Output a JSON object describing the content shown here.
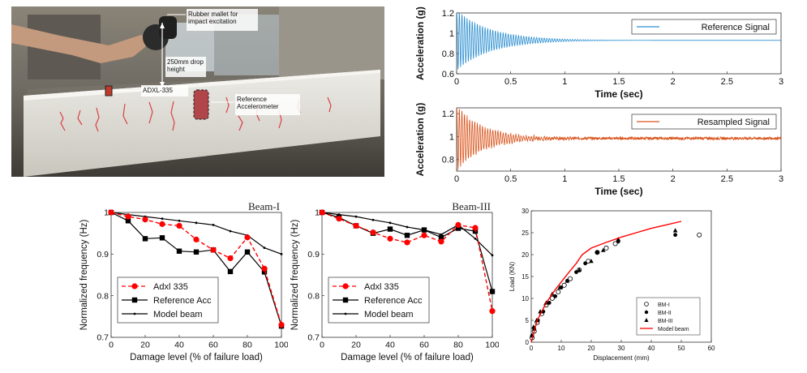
{
  "photo": {
    "annotations": [
      {
        "text": "Rubber mallet for impact excitation"
      },
      {
        "text": "250mm drop height"
      },
      {
        "text": "ADXL-335"
      },
      {
        "text": "Reference Accelerometer"
      }
    ]
  },
  "chart_data": [
    {
      "id": "reference-signal",
      "type": "line",
      "legend": [
        "Reference Signal"
      ],
      "legend_position": "top-right",
      "xlabel": "Time (sec)",
      "ylabel": "Acceleration (g)",
      "xlim": [
        0,
        3
      ],
      "ylim": [
        0.6,
        1.2
      ],
      "xticks": [
        0,
        0.5,
        1,
        1.5,
        2,
        2.5,
        3
      ],
      "yticks": [
        0.6,
        0.8,
        1,
        1.2
      ],
      "color": "#2c8fd0",
      "signal": {
        "baseline": 0.93,
        "amplitude": 0.3,
        "decay": 3.2,
        "frequency_hz": 42,
        "noise": 0.0,
        "duration": 3
      }
    },
    {
      "id": "resampled-signal",
      "type": "line",
      "legend": [
        "Resampled Signal"
      ],
      "legend_position": "top-right",
      "xlabel": "Time (sec)",
      "ylabel": "Acceleration (g)",
      "xlim": [
        0,
        3
      ],
      "ylim": [
        0.7,
        1.25
      ],
      "xticks": [
        0,
        0.5,
        1,
        1.5,
        2,
        2.5,
        3
      ],
      "yticks": [
        0.8,
        1,
        1.2
      ],
      "color": "#d9531a",
      "signal": {
        "baseline": 0.985,
        "amplitude": 0.28,
        "decay": 4.0,
        "frequency_hz": 42,
        "noise": 0.012,
        "duration": 3
      }
    },
    {
      "id": "beam-1",
      "type": "line",
      "title": "Beam-I",
      "xlabel": "Damage level (% of failure load)",
      "ylabel": "Normalized frequency (Hz)",
      "xlim": [
        0,
        100
      ],
      "ylim": [
        0.7,
        1
      ],
      "xticks": [
        0,
        20,
        40,
        60,
        80,
        100
      ],
      "yticks": [
        0.7,
        0.8,
        0.9,
        1
      ],
      "legend_position": "bottom-left",
      "series": [
        {
          "name": "Adxl 335",
          "color": "#ff0000",
          "marker": "circle",
          "dash": true,
          "x": [
            0,
            10,
            20,
            30,
            40,
            50,
            60,
            70,
            80,
            90,
            100
          ],
          "y": [
            1.0,
            0.99,
            0.983,
            0.972,
            0.968,
            0.935,
            0.91,
            0.89,
            0.94,
            0.865,
            0.73
          ]
        },
        {
          "name": "Reference Acc",
          "color": "#000000",
          "marker": "square",
          "dash": false,
          "x": [
            0,
            10,
            20,
            30,
            40,
            50,
            60,
            70,
            80,
            90,
            100
          ],
          "y": [
            1.0,
            0.98,
            0.937,
            0.939,
            0.907,
            0.905,
            0.91,
            0.858,
            0.905,
            0.857,
            0.727
          ]
        },
        {
          "name": "Model beam",
          "color": "#000000",
          "marker": "dot",
          "dash": false,
          "x": [
            0,
            10,
            20,
            30,
            40,
            50,
            60,
            70,
            80,
            90,
            100
          ],
          "y": [
            1.0,
            0.995,
            0.99,
            0.985,
            0.98,
            0.975,
            0.97,
            0.955,
            0.945,
            0.915,
            0.9
          ]
        }
      ]
    },
    {
      "id": "beam-3",
      "type": "line",
      "title": "Beam-III",
      "xlabel": "Damage level (% of failure load)",
      "ylabel": "Normalized frequency (Hz)",
      "xlim": [
        0,
        100
      ],
      "ylim": [
        0.7,
        1
      ],
      "xticks": [
        0,
        20,
        40,
        60,
        80,
        100
      ],
      "yticks": [
        0.7,
        0.8,
        0.9,
        1
      ],
      "legend_position": "bottom-left",
      "series": [
        {
          "name": "Adxl 335",
          "color": "#ff0000",
          "marker": "circle",
          "dash": true,
          "x": [
            0,
            10,
            20,
            30,
            40,
            50,
            60,
            70,
            80,
            90,
            100
          ],
          "y": [
            1.0,
            0.985,
            0.968,
            0.952,
            0.937,
            0.928,
            0.945,
            0.93,
            0.97,
            0.963,
            0.763
          ]
        },
        {
          "name": "Reference Acc",
          "color": "#000000",
          "marker": "square",
          "dash": false,
          "x": [
            0,
            10,
            20,
            30,
            40,
            50,
            60,
            70,
            80,
            90,
            100
          ],
          "y": [
            1.0,
            0.988,
            0.968,
            0.95,
            0.96,
            0.945,
            0.958,
            0.94,
            0.962,
            0.955,
            0.81
          ]
        },
        {
          "name": "Model beam",
          "color": "#000000",
          "marker": "dot",
          "dash": false,
          "x": [
            0,
            10,
            20,
            30,
            40,
            50,
            60,
            70,
            80,
            90,
            100
          ],
          "y": [
            1.0,
            0.995,
            0.99,
            0.982,
            0.975,
            0.965,
            0.958,
            0.947,
            0.97,
            0.937,
            0.897
          ]
        }
      ]
    },
    {
      "id": "load-displacement",
      "type": "scatter",
      "xlabel": "Displacement (mm)",
      "ylabel": "Load (KN)",
      "xlim": [
        0,
        60
      ],
      "ylim": [
        0,
        30
      ],
      "xticks": [
        0,
        10,
        20,
        30,
        40,
        50,
        60
      ],
      "yticks": [
        0,
        5,
        10,
        15,
        20,
        25,
        30
      ],
      "legend_position": "bottom-right",
      "series": [
        {
          "name": "BM-I",
          "marker": "open-circle",
          "color": "#000000",
          "x": [
            0.3,
            1,
            2,
            3.5,
            5,
            7,
            9,
            11,
            13,
            16,
            19,
            22,
            25,
            28,
            56
          ],
          "y": [
            1,
            2.5,
            4.5,
            6.5,
            8.5,
            10,
            11.5,
            13,
            14.5,
            16.5,
            18.5,
            20.5,
            21.5,
            22.5,
            24.5
          ]
        },
        {
          "name": "BM-II",
          "marker": "filled-circle",
          "color": "#000000",
          "x": [
            0.3,
            1,
            2.2,
            4,
            6,
            8,
            10,
            12,
            15,
            18,
            22,
            29,
            48
          ],
          "y": [
            1.5,
            3,
            5,
            7,
            9,
            10.5,
            12.5,
            14,
            16,
            18,
            20.5,
            23,
            24.5
          ]
        },
        {
          "name": "BM-III",
          "marker": "filled-triangle",
          "color": "#000000",
          "x": [
            0.2,
            0.8,
            1.8,
            3,
            5,
            7,
            9.5,
            12,
            16,
            20,
            24,
            29,
            48
          ],
          "y": [
            1.5,
            3.5,
            5,
            7,
            9,
            11,
            12.5,
            14,
            16.5,
            18.5,
            21,
            23.5,
            25.5
          ]
        },
        {
          "name": "Model beam",
          "marker": "line",
          "color": "#ff0000",
          "x": [
            0,
            2,
            5,
            8,
            12,
            15,
            17,
            20,
            25,
            30,
            35,
            40,
            45,
            50
          ],
          "y": [
            0,
            5,
            9,
            12,
            15.5,
            18,
            20,
            21.5,
            22.8,
            24,
            25,
            26,
            26.8,
            27.6
          ]
        }
      ]
    }
  ]
}
